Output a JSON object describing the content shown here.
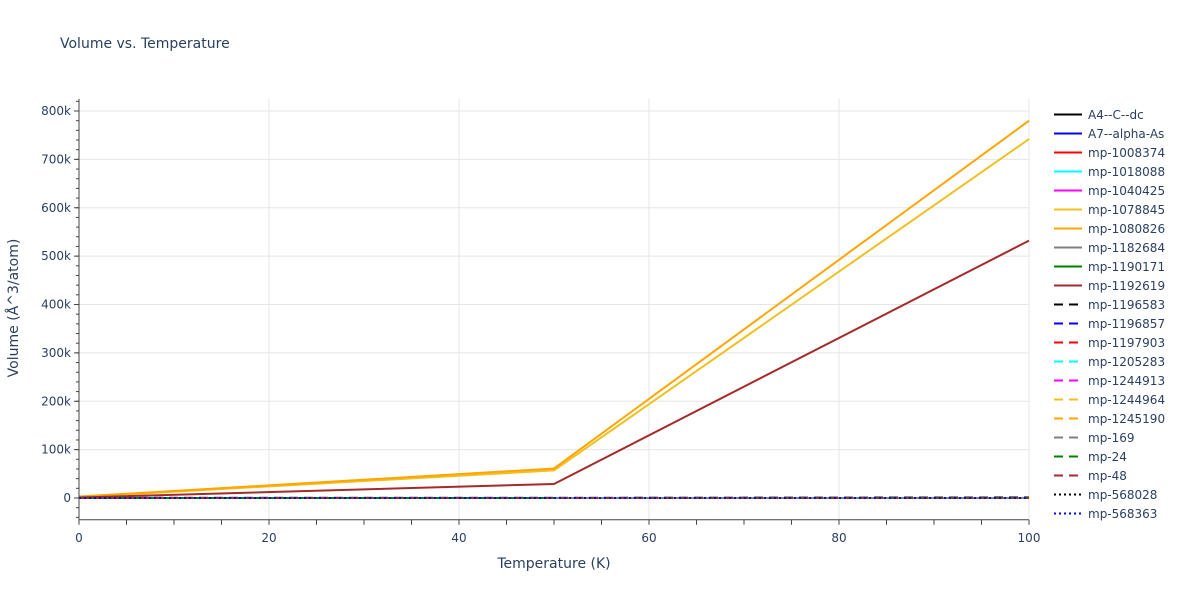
{
  "chart_data": {
    "type": "line",
    "title": "Volume vs. Temperature",
    "xlabel": "Temperature (K)",
    "ylabel": "Volume (Å^3/atom)",
    "xlim": [
      0,
      100
    ],
    "ylim": [
      -45000,
      825000
    ],
    "x_ticks": [
      0,
      20,
      40,
      60,
      80,
      100
    ],
    "y_ticks": [
      0,
      100000,
      200000,
      300000,
      400000,
      500000,
      600000,
      700000,
      800000
    ],
    "y_tick_labels": [
      "0",
      "100k",
      "200k",
      "300k",
      "400k",
      "500k",
      "600k",
      "700k",
      "800k"
    ],
    "grid": true,
    "legend_position": "right",
    "x": [
      0,
      50,
      100
    ],
    "series": [
      {
        "name": "A4--C--dc",
        "color": "#000000",
        "dash": "solid",
        "values": [
          0,
          0,
          0
        ]
      },
      {
        "name": "A7--alpha-As",
        "color": "#0000ff",
        "dash": "solid",
        "values": [
          0,
          0,
          0
        ]
      },
      {
        "name": "mp-1008374",
        "color": "#ff0000",
        "dash": "solid",
        "values": [
          0,
          0,
          0
        ]
      },
      {
        "name": "mp-1018088",
        "color": "#00ffff",
        "dash": "solid",
        "values": [
          0,
          0,
          0
        ]
      },
      {
        "name": "mp-1040425",
        "color": "#ff00ff",
        "dash": "solid",
        "values": [
          0,
          0,
          0
        ]
      },
      {
        "name": "mp-1078845",
        "color": "#f0c020",
        "dash": "solid",
        "values": [
          2000,
          57000,
          742000
        ]
      },
      {
        "name": "mp-1080826",
        "color": "#ffa500",
        "dash": "solid",
        "values": [
          3000,
          61000,
          780000
        ]
      },
      {
        "name": "mp-1182684",
        "color": "#808080",
        "dash": "solid",
        "values": [
          0,
          0,
          0
        ]
      },
      {
        "name": "mp-1190171",
        "color": "#008000",
        "dash": "solid",
        "values": [
          0,
          0,
          null
        ]
      },
      {
        "name": "mp-1192619",
        "color": "#a52a2a",
        "dash": "solid",
        "values": [
          1000,
          29000,
          532000
        ]
      },
      {
        "name": "mp-1196583",
        "color": "#000000",
        "dash": "dash",
        "values": [
          0,
          0,
          0
        ]
      },
      {
        "name": "mp-1196857",
        "color": "#0000ff",
        "dash": "dash",
        "values": [
          0,
          0,
          0
        ]
      },
      {
        "name": "mp-1197903",
        "color": "#ff0000",
        "dash": "dash",
        "values": [
          0,
          0,
          0
        ]
      },
      {
        "name": "mp-1205283",
        "color": "#00ffff",
        "dash": "dash",
        "values": [
          0,
          0,
          0
        ]
      },
      {
        "name": "mp-1244913",
        "color": "#ff00ff",
        "dash": "dash",
        "values": [
          0,
          0,
          0
        ]
      },
      {
        "name": "mp-1244964",
        "color": "#f0c020",
        "dash": "dash",
        "values": [
          0,
          0,
          0
        ]
      },
      {
        "name": "mp-1245190",
        "color": "#ffa500",
        "dash": "dash",
        "values": [
          0,
          0,
          0
        ]
      },
      {
        "name": "mp-169",
        "color": "#808080",
        "dash": "dash",
        "values": [
          0,
          0,
          0
        ]
      },
      {
        "name": "mp-24",
        "color": "#008000",
        "dash": "dash",
        "values": [
          500,
          500,
          1500
        ]
      },
      {
        "name": "mp-48",
        "color": "#a52a2a",
        "dash": "dash",
        "values": [
          0,
          0,
          0
        ]
      },
      {
        "name": "mp-568028",
        "color": "#000000",
        "dash": "dot",
        "values": [
          0,
          0,
          0
        ]
      },
      {
        "name": "mp-568363",
        "color": "#0000ff",
        "dash": "dot",
        "values": [
          0,
          0,
          0
        ]
      }
    ]
  }
}
